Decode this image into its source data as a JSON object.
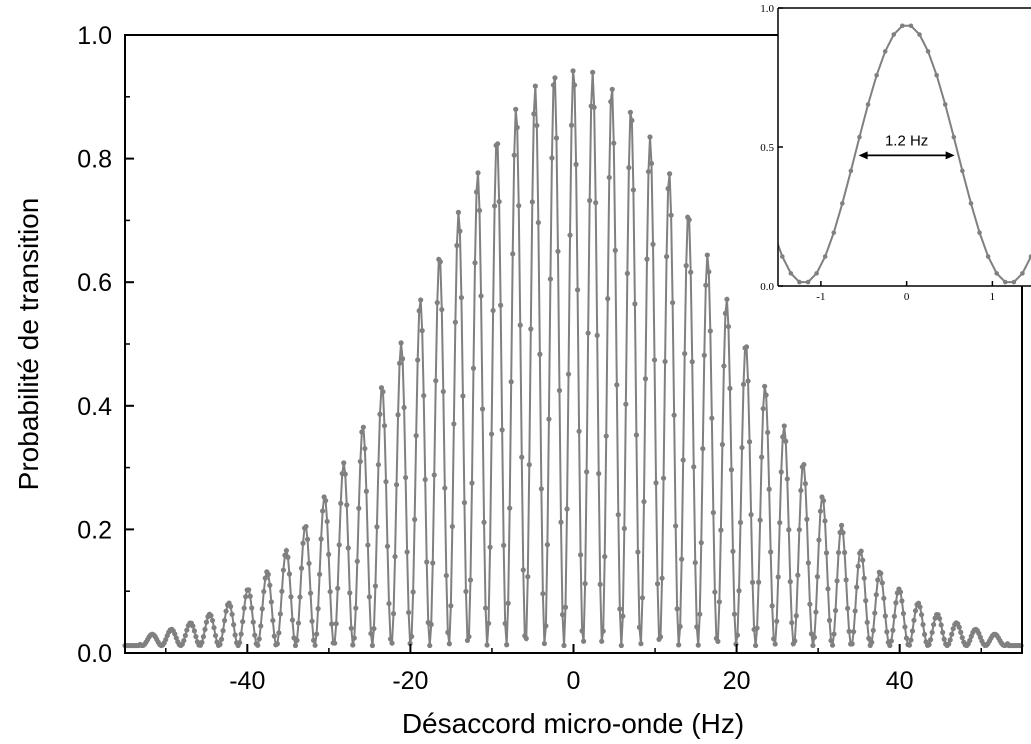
{
  "chart_data": [
    {
      "type": "line",
      "description_role": "main",
      "xlabel": "Désaccord micro-onde (Hz)",
      "ylabel": "Probabilité de transition",
      "xlim": [
        -55,
        55
      ],
      "ylim": [
        0,
        1.0
      ],
      "x_ticks": [
        -40,
        -20,
        0,
        20,
        40
      ],
      "x_tick_labels": [
        "-40",
        "-20",
        "0",
        "20",
        "40"
      ],
      "y_ticks": [
        0,
        0.2,
        0.4,
        0.6,
        0.8,
        1.0
      ],
      "y_tick_labels": [
        "0.0",
        "0.2",
        "0.4",
        "0.6",
        "0.8",
        "1.0"
      ],
      "grid": false,
      "legend": "none",
      "color": "#808080",
      "model": {
        "kind": "ramsey_fringes",
        "peak_amplitude": 0.935,
        "fringe_period_hz": 2.35,
        "envelope_center_hz": 0,
        "envelope_halfwidth_hz": 39.5,
        "baseline": 0.012
      },
      "envelope_peaks": [
        {
          "x": -44.0,
          "y": 0.03
        },
        {
          "x": -41.5,
          "y": 0.045
        },
        {
          "x": -39.5,
          "y": 0.065
        },
        {
          "x": -37.0,
          "y": 0.095
        },
        {
          "x": -34.5,
          "y": 0.135
        },
        {
          "x": -32.5,
          "y": 0.185
        },
        {
          "x": -30.0,
          "y": 0.24
        },
        {
          "x": -28.0,
          "y": 0.31
        },
        {
          "x": -25.5,
          "y": 0.385
        },
        {
          "x": -23.0,
          "y": 0.465
        },
        {
          "x": -21.0,
          "y": 0.54
        },
        {
          "x": -18.5,
          "y": 0.62
        },
        {
          "x": -16.0,
          "y": 0.695
        },
        {
          "x": -14.0,
          "y": 0.76
        },
        {
          "x": -11.5,
          "y": 0.82
        },
        {
          "x": -9.5,
          "y": 0.86
        },
        {
          "x": -7.0,
          "y": 0.895
        },
        {
          "x": -4.5,
          "y": 0.92
        },
        {
          "x": -2.0,
          "y": 0.935
        },
        {
          "x": 0.0,
          "y": 0.937
        },
        {
          "x": 2.5,
          "y": 0.935
        },
        {
          "x": 4.5,
          "y": 0.92
        },
        {
          "x": 7.0,
          "y": 0.895
        },
        {
          "x": 9.5,
          "y": 0.86
        },
        {
          "x": 11.5,
          "y": 0.82
        },
        {
          "x": 14.0,
          "y": 0.76
        },
        {
          "x": 16.0,
          "y": 0.695
        },
        {
          "x": 18.5,
          "y": 0.62
        },
        {
          "x": 21.0,
          "y": 0.54
        },
        {
          "x": 23.0,
          "y": 0.465
        },
        {
          "x": 25.5,
          "y": 0.385
        },
        {
          "x": 28.0,
          "y": 0.31
        },
        {
          "x": 30.0,
          "y": 0.24
        },
        {
          "x": 32.5,
          "y": 0.185
        },
        {
          "x": 34.5,
          "y": 0.135
        },
        {
          "x": 37.0,
          "y": 0.095
        },
        {
          "x": 39.5,
          "y": 0.065
        },
        {
          "x": 41.5,
          "y": 0.045
        },
        {
          "x": 44.0,
          "y": 0.03
        }
      ]
    },
    {
      "type": "line",
      "description_role": "inset",
      "xlim": [
        -1.5,
        1.45
      ],
      "ylim": [
        0,
        1.0
      ],
      "x_ticks": [
        -1,
        0,
        1
      ],
      "x_tick_labels": [
        "-1",
        "0",
        "1"
      ],
      "y_ticks": [
        0,
        0.5,
        1.0
      ],
      "y_tick_labels": [
        "0.0",
        "0.5",
        "1.0"
      ],
      "grid": false,
      "legend": "none",
      "color": "#808080",
      "model": {
        "kind": "central_fringe",
        "peak_amplitude": 0.93,
        "fringe_period_hz": 2.4,
        "baseline": 0.01
      },
      "annotation": {
        "text": "1.2 Hz",
        "x_start": -0.56,
        "x_end": 0.56,
        "y": 0.47
      }
    }
  ]
}
